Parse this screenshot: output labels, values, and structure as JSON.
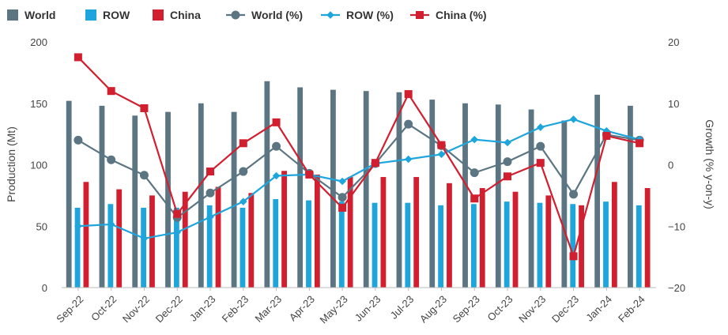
{
  "chart_data": {
    "type": "bar+line",
    "categories": [
      "Sep-22",
      "Oct-22",
      "Nov-22",
      "Dec-22",
      "Jan-23",
      "Feb-23",
      "Mar-23",
      "Apr-23",
      "May-23",
      "Jun-23",
      "Jul-23",
      "Aug-23",
      "Sep-23",
      "Oct-23",
      "Nov-23",
      "Dec-23",
      "Jan-24",
      "Feb-24"
    ],
    "legend": [
      {
        "label": "World",
        "kind": "bar",
        "color": "#5b7583"
      },
      {
        "label": "ROW",
        "kind": "bar",
        "color": "#1ea6dc"
      },
      {
        "label": "China",
        "kind": "bar",
        "color": "#d21f2f"
      },
      {
        "label": "World (%)",
        "kind": "line",
        "marker": "circle",
        "color": "#5b7583"
      },
      {
        "label": "ROW (%)",
        "kind": "line",
        "marker": "diamond",
        "color": "#1ea6dc"
      },
      {
        "label": "China (%)",
        "kind": "line",
        "marker": "square",
        "color": "#d21f2f"
      }
    ],
    "bar_series": [
      {
        "name": "World",
        "color": "#5b7583",
        "values": [
          152,
          148,
          140,
          143,
          150,
          143,
          168,
          163,
          161,
          160,
          159,
          153,
          150,
          149,
          145,
          136,
          157,
          148
        ]
      },
      {
        "name": "ROW",
        "color": "#1ea6dc",
        "values": [
          65,
          68,
          65,
          65,
          67,
          65,
          72,
          71,
          70,
          69,
          69,
          67,
          68,
          70,
          69,
          68,
          70,
          67
        ]
      },
      {
        "name": "China",
        "color": "#d21f2f",
        "values": [
          86,
          80,
          75,
          78,
          82,
          77,
          95,
          92,
          90,
          90,
          90,
          85,
          81,
          78,
          75,
          67,
          86,
          81
        ]
      }
    ],
    "line_series": [
      {
        "name": "World (%)",
        "color": "#5b7583",
        "marker": "circle",
        "values": [
          4,
          0.8,
          -1.7,
          -8.6,
          -4.6,
          -1.1,
          3,
          -1.4,
          -5.3,
          0.2,
          6.6,
          3.1,
          -1.3,
          0.5,
          3,
          -4.8,
          4.9,
          4
        ]
      },
      {
        "name": "ROW (%)",
        "color": "#1ea6dc",
        "marker": "diamond",
        "values": [
          -10,
          -9.7,
          -12,
          -11,
          -8.5,
          -6,
          -1.8,
          -1.6,
          -2.7,
          0.2,
          0.9,
          1.7,
          4.1,
          3.6,
          6.1,
          7.4,
          5.5,
          4.1
        ]
      },
      {
        "name": "China (%)",
        "color": "#d21f2f",
        "marker": "square",
        "values": [
          17.5,
          12,
          9.2,
          -8,
          -1.1,
          3.5,
          6.9,
          -1.6,
          -7,
          0.3,
          11.5,
          3.2,
          -5.5,
          -1.9,
          0.3,
          -14.9,
          4.7,
          3.5
        ]
      }
    ],
    "y_left": {
      "label": "Production (Mt)",
      "min": 0,
      "max": 200,
      "ticks": [
        "0",
        "50",
        "100",
        "150",
        "200"
      ]
    },
    "y_right": {
      "label": "Growth (% y-on-y)",
      "min": -20,
      "max": 20,
      "ticks": [
        "−20",
        "−10",
        "0",
        "10",
        "20"
      ]
    },
    "grid": false,
    "legend_position": "top-left"
  }
}
